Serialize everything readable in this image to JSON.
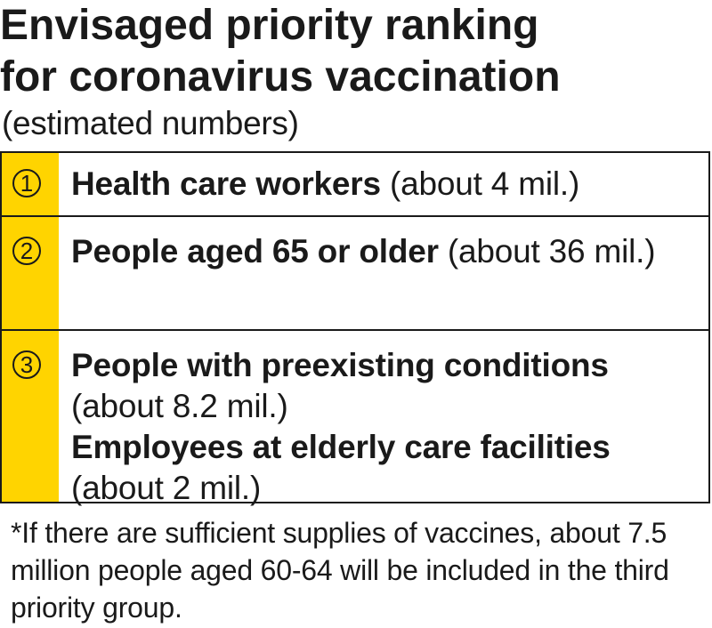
{
  "title": {
    "line1": "Envisaged priority ranking",
    "line2": "for coronavirus vaccination"
  },
  "subtitle": "(estimated numbers)",
  "accent_color": "#ffd400",
  "rows": [
    {
      "number": "1",
      "entries": [
        {
          "label": "Health care workers",
          "estimate": " (about 4 mil.)"
        }
      ]
    },
    {
      "number": "2",
      "entries": [
        {
          "label": "People aged 65 or older",
          "estimate": " (about 36 mil.)"
        }
      ]
    },
    {
      "number": "3",
      "entries": [
        {
          "label": "People with preexisting conditions",
          "estimate": " (about 8.2 mil.)"
        },
        {
          "label": "Employees at elderly care facilities",
          "estimate": " (about 2 mil.)"
        }
      ]
    }
  ],
  "footnote": "*If there are sufficient supplies of vaccines, about 7.5 million people aged 60-64 will be included in the third priority group."
}
